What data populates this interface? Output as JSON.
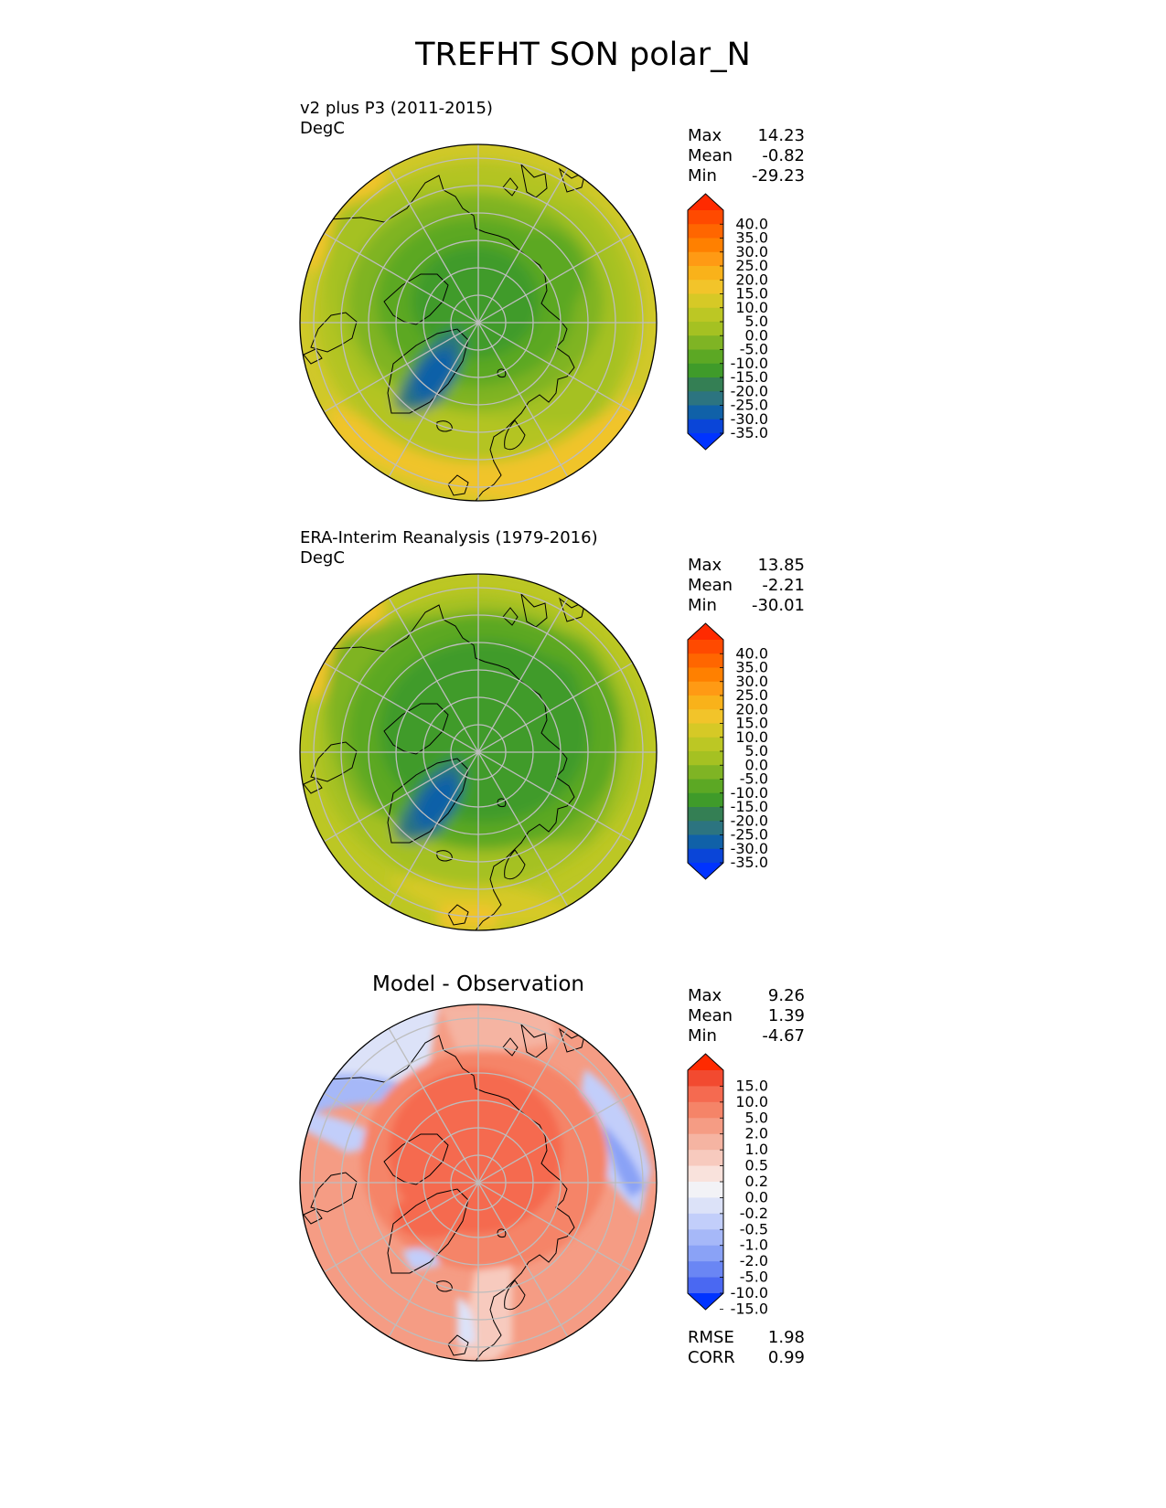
{
  "figure": {
    "title": "TREFHT SON polar_N"
  },
  "chart_data": [
    {
      "type": "heatmap",
      "projection": "north-polar-stereographic",
      "title": "v2 plus P3 (2011-2015)",
      "units": "DegC",
      "stats": [
        {
          "label": "Max",
          "value": "14.23"
        },
        {
          "label": "Mean",
          "value": "-0.82"
        },
        {
          "label": "Min",
          "value": "-29.23"
        }
      ],
      "colorbar": {
        "levels": [
          "40.0",
          "35.0",
          "30.0",
          "25.0",
          "20.0",
          "15.0",
          "10.0",
          "5.0",
          "0.0",
          "-5.0",
          "-10.0",
          "-15.0",
          "-20.0",
          "-25.0",
          "-30.0",
          "-35.0"
        ],
        "colors": [
          "#ff2a00",
          "#ff4a00",
          "#ff6600",
          "#ff8000",
          "#ff9a14",
          "#f9b21a",
          "#f2c42a",
          "#d6c926",
          "#bcc724",
          "#a5c122",
          "#7fb424",
          "#5ca824",
          "#3f9b2a",
          "#347f54",
          "#2c7480",
          "#1061a8",
          "#0a45d8",
          "#0033ff"
        ],
        "extend": "both"
      }
    },
    {
      "type": "heatmap",
      "projection": "north-polar-stereographic",
      "title": "ERA-Interim Reanalysis (1979-2016)",
      "units": "DegC",
      "stats": [
        {
          "label": "Max",
          "value": "13.85"
        },
        {
          "label": "Mean",
          "value": "-2.21"
        },
        {
          "label": "Min",
          "value": "-30.01"
        }
      ],
      "colorbar": {
        "levels": [
          "40.0",
          "35.0",
          "30.0",
          "25.0",
          "20.0",
          "15.0",
          "10.0",
          "5.0",
          "0.0",
          "-5.0",
          "-10.0",
          "-15.0",
          "-20.0",
          "-25.0",
          "-30.0",
          "-35.0"
        ],
        "colors": [
          "#ff2a00",
          "#ff4a00",
          "#ff6600",
          "#ff8000",
          "#ff9a14",
          "#f9b21a",
          "#f2c42a",
          "#d6c926",
          "#bcc724",
          "#a5c122",
          "#7fb424",
          "#5ca824",
          "#3f9b2a",
          "#347f54",
          "#2c7480",
          "#1061a8",
          "#0a45d8",
          "#0033ff"
        ],
        "extend": "both"
      }
    },
    {
      "type": "heatmap",
      "projection": "north-polar-stereographic",
      "title": "Model - Observation",
      "stats": [
        {
          "label": "Max",
          "value": "9.26"
        },
        {
          "label": "Mean",
          "value": "1.39"
        },
        {
          "label": "Min",
          "value": "-4.67"
        }
      ],
      "metrics": [
        {
          "label": "RMSE",
          "value": "1.98"
        },
        {
          "label": "CORR",
          "value": "0.99"
        }
      ],
      "colorbar": {
        "levels": [
          "15.0",
          "10.0",
          "5.0",
          "2.0",
          "1.0",
          "0.5",
          "0.2",
          "0.0",
          "-0.2",
          "-0.5",
          "-1.0",
          "-2.0",
          "-5.0",
          "-10.0",
          "-15.0"
        ],
        "colors": [
          "#ff2a00",
          "#f24a30",
          "#f56a50",
          "#f58468",
          "#f59c84",
          "#f5b4a2",
          "#f7cabe",
          "#f9e2dc",
          "#f2f2f6",
          "#dce2f8",
          "#c2cefa",
          "#a6b8f8",
          "#8aa2f6",
          "#6a86f4",
          "#4a68f2",
          "#0033ff"
        ],
        "extend": "both"
      }
    }
  ]
}
